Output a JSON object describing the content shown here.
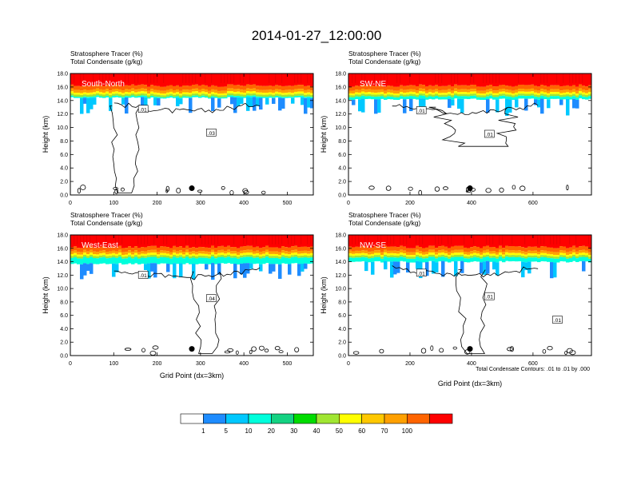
{
  "page_title": "2014-01-27_12:00:00",
  "footnote": "Total Condensate Contours: .01 to .01 by .000",
  "colorbar": {
    "labels": [
      "1",
      "5",
      "10",
      "20",
      "30",
      "40",
      "50",
      "60",
      "70",
      "100"
    ],
    "colors": [
      "#ffffff",
      "#1e8cff",
      "#00c8ff",
      "#00ffdc",
      "#14d282",
      "#00dc00",
      "#a0e632",
      "#ffff00",
      "#ffc800",
      "#ffa000",
      "#ff6400",
      "#ff0000"
    ]
  },
  "chart_data": [
    {
      "type": "heatmap",
      "title_line1": "Stratosphere Tracer   (%)",
      "title_line2": "Total Condensate   (g/kg)",
      "panel_label": "South-North",
      "xlabel": "",
      "ylabel": "Height (km)",
      "xlim": [
        0,
        560
      ],
      "ylim": [
        0,
        18
      ],
      "xticks": [
        "0",
        "100",
        "200",
        "300",
        "400",
        "500"
      ],
      "yticks": [
        "0.0",
        "2.0",
        "4.0",
        "6.0",
        "8.0",
        "10.0",
        "12.0",
        "14.0",
        "16.0",
        "18.0"
      ],
      "tracer_layer_top_km": 18,
      "tracer_layer_base_km": 14.2,
      "cloud_contour_labels": [
        ".01",
        ".03"
      ],
      "marker": {
        "x": 280,
        "y": 1.0
      }
    },
    {
      "type": "heatmap",
      "title_line1": "Stratosphere Tracer   (%)",
      "title_line2": "Total Condensate   (g/kg)",
      "panel_label": "SW-NE",
      "xlabel": "",
      "ylabel": "Height (km)",
      "xlim": [
        0,
        790
      ],
      "ylim": [
        0,
        18
      ],
      "xticks": [
        "0",
        "200",
        "400",
        "600"
      ],
      "yticks": [
        "0.0",
        "2.0",
        "4.0",
        "6.0",
        "8.0",
        "10.0",
        "12.0",
        "14.0",
        "16.0",
        "18.0"
      ],
      "tracer_layer_top_km": 18,
      "tracer_layer_base_km": 14.0,
      "cloud_contour_labels": [
        ".01",
        ".01"
      ],
      "marker": {
        "x": 395,
        "y": 1.0
      }
    },
    {
      "type": "heatmap",
      "title_line1": "Stratosphere Tracer   (%)",
      "title_line2": "Total Condensate   (g/kg)",
      "panel_label": "West-East",
      "xlabel": "Grid Point (dx=3km)",
      "ylabel": "Height (km)",
      "xlim": [
        0,
        560
      ],
      "ylim": [
        0,
        18
      ],
      "xticks": [
        "0",
        "100",
        "200",
        "300",
        "400",
        "500"
      ],
      "yticks": [
        "0.0",
        "2.0",
        "4.0",
        "6.0",
        "8.0",
        "10.0",
        "12.0",
        "14.0",
        "16.0",
        "18.0"
      ],
      "tracer_layer_top_km": 18,
      "tracer_layer_base_km": 13.5,
      "cloud_contour_labels": [
        ".01",
        ".04"
      ],
      "marker": {
        "x": 280,
        "y": 1.0
      }
    },
    {
      "type": "heatmap",
      "title_line1": "Stratosphere Tracer   (%)",
      "title_line2": "Total Condensate   (g/kg)",
      "panel_label": "NW-SE",
      "xlabel": "Grid Point (dx=3km)",
      "ylabel": "Height (km)",
      "xlim": [
        0,
        790
      ],
      "ylim": [
        0,
        18
      ],
      "xticks": [
        "0",
        "200",
        "400",
        "600"
      ],
      "yticks": [
        "0.0",
        "2.0",
        "4.0",
        "6.0",
        "8.0",
        "10.0",
        "12.0",
        "14.0",
        "16.0",
        "18.0"
      ],
      "tracer_layer_top_km": 18,
      "tracer_layer_base_km": 13.8,
      "cloud_contour_labels": [
        ".01",
        ".01",
        ".01"
      ],
      "marker": {
        "x": 395,
        "y": 1.0
      }
    }
  ]
}
